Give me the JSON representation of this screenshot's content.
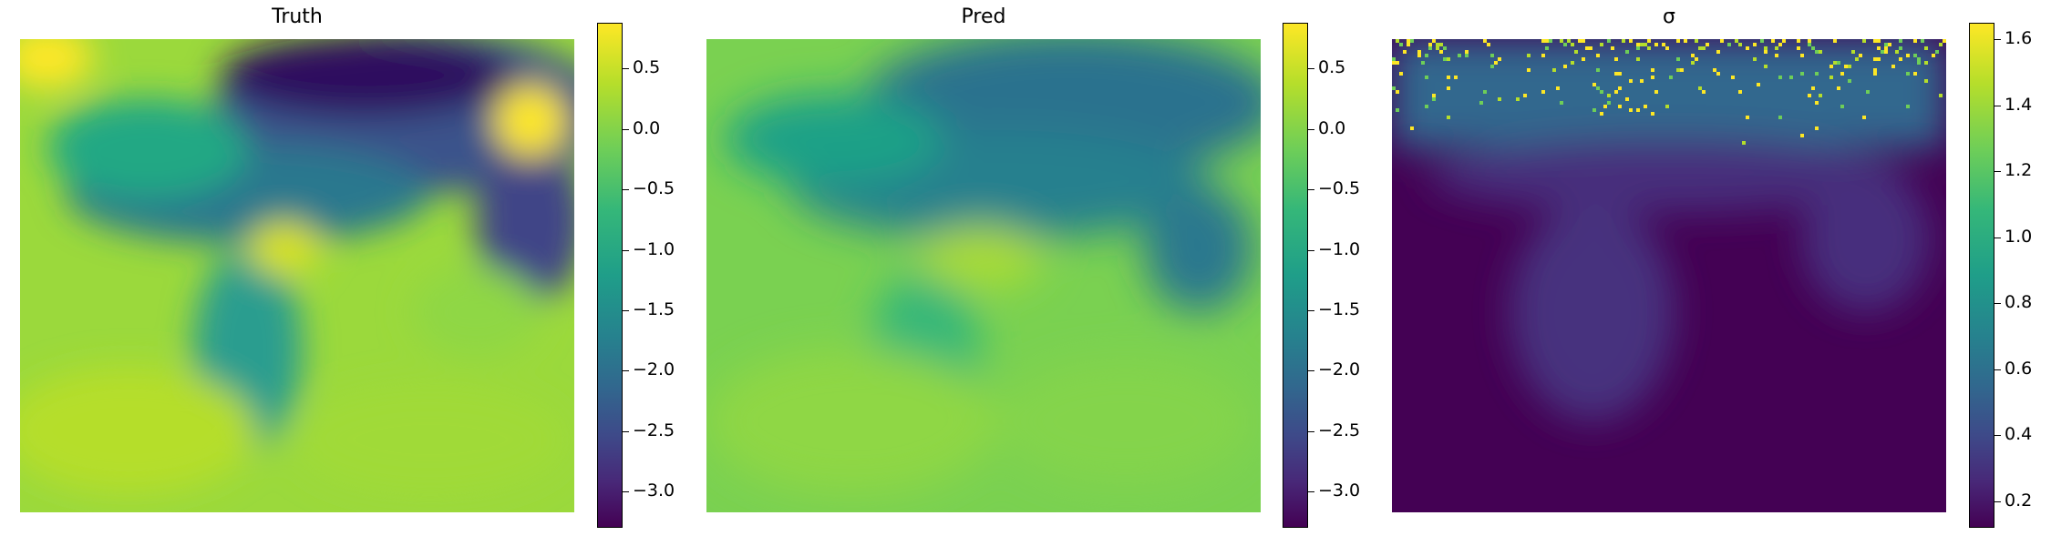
{
  "chart_data": [
    {
      "type": "heatmap",
      "title": "Truth",
      "colormap": "viridis",
      "colorbar": {
        "range": [
          -3.3,
          0.88
        ],
        "ticks": [
          0.5,
          0.0,
          -0.5,
          -1.0,
          -1.5,
          -2.0,
          -2.5,
          -3.0
        ],
        "tick_labels": [
          "0.5",
          "0.0",
          "−0.5",
          "−1.0",
          "−1.5",
          "−2.0",
          "−2.5",
          "−3.0"
        ]
      },
      "description_of_field": "regional map: low values in the mountainous north, mostly high values over land and sea in the south"
    },
    {
      "type": "heatmap",
      "title": "Pred",
      "colormap": "viridis",
      "colorbar": {
        "range": [
          -3.3,
          0.88
        ],
        "ticks": [
          0.5,
          0.0,
          -0.5,
          -1.0,
          -1.5,
          -2.0,
          -2.5,
          -3.0
        ],
        "tick_labels": [
          "0.5",
          "0.0",
          "−0.5",
          "−1.0",
          "−1.5",
          "−2.0",
          "−2.5",
          "−3.0"
        ]
      }
    },
    {
      "type": "heatmap",
      "title": "σ",
      "colormap": "viridis",
      "colorbar": {
        "range": [
          0.12,
          1.65
        ],
        "ticks": [
          1.6,
          1.4,
          1.2,
          1.0,
          0.8,
          0.6,
          0.4,
          0.2
        ],
        "tick_labels": [
          "1.6",
          "1.4",
          "1.2",
          "1.0",
          "0.8",
          "0.6",
          "0.4",
          "0.2"
        ]
      }
    }
  ]
}
